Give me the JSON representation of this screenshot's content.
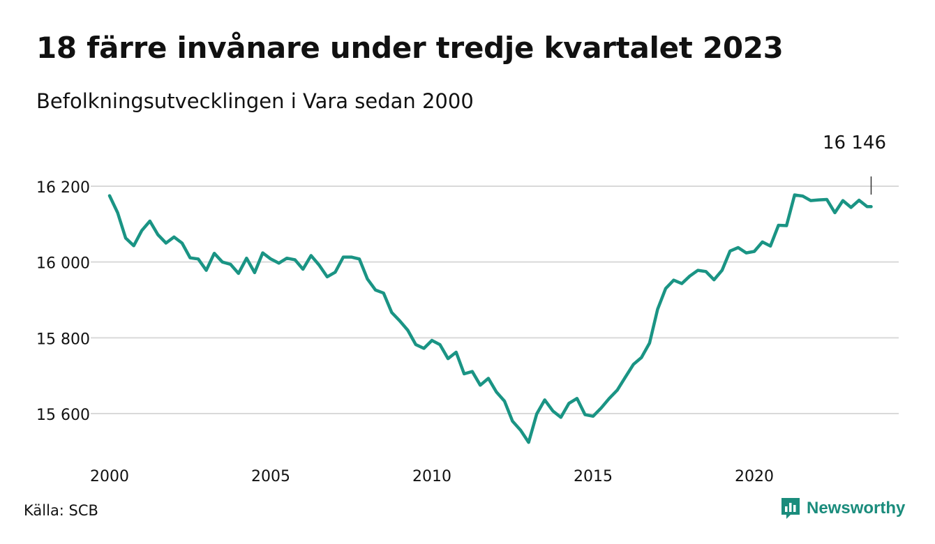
{
  "title": "18 färre invånare under tredje kvartalet 2023",
  "subtitle": "Befolkningsutvecklingen i Vara sedan 2000",
  "source": "Källa: SCB",
  "brand": {
    "name": "Newsworthy",
    "icon": "newsworthy-logo-icon",
    "color": "#1a8c7c"
  },
  "colors": {
    "line": "#1a9484",
    "grid": "#d9d9d9",
    "text": "#111111"
  },
  "chart_data": {
    "type": "line",
    "title": "18 färre invånare under tredje kvartalet 2023",
    "subtitle": "Befolkningsutvecklingen i Vara sedan 2000",
    "xlabel": "",
    "ylabel": "",
    "xlim": [
      2000,
      2024
    ],
    "ylim": [
      15500,
      16250
    ],
    "x_ticks": [
      2000,
      2005,
      2010,
      2015,
      2020
    ],
    "x_tick_labels": [
      "2000",
      "2005",
      "2010",
      "2015",
      "2020"
    ],
    "y_ticks": [
      15600,
      15800,
      16000,
      16200
    ],
    "y_tick_labels": [
      "15 600",
      "15 800",
      "16 000",
      "16 200"
    ],
    "grid": "horizontal",
    "legend": "none",
    "annotation": {
      "label": "16 146",
      "x": 2023.625
    },
    "series": [
      {
        "x": [
          2000.0,
          2000.25,
          2000.5,
          2000.75,
          2001.0,
          2001.25,
          2001.5,
          2001.75,
          2002.0,
          2002.25,
          2002.5,
          2002.75,
          2003.0,
          2003.25,
          2003.5,
          2003.75,
          2004.0,
          2004.25,
          2004.5,
          2004.75,
          2005.0,
          2005.25,
          2005.5,
          2005.75,
          2006.0,
          2006.25,
          2006.5,
          2006.75,
          2007.0,
          2007.25,
          2007.5,
          2007.75,
          2008.0,
          2008.25,
          2008.5,
          2008.75,
          2009.0,
          2009.25,
          2009.5,
          2009.75,
          2010.0,
          2010.25,
          2010.5,
          2010.75,
          2011.0,
          2011.25,
          2011.5,
          2011.75,
          2012.0,
          2012.25,
          2012.5,
          2012.75,
          2013.0,
          2013.25,
          2013.5,
          2013.75,
          2014.0,
          2014.25,
          2014.5,
          2014.75,
          2015.0,
          2015.25,
          2015.5,
          2015.75,
          2016.0,
          2016.25,
          2016.5,
          2016.75,
          2017.0,
          2017.25,
          2017.5,
          2017.75,
          2018.0,
          2018.25,
          2018.5,
          2018.75,
          2019.0,
          2019.25,
          2019.5,
          2019.75,
          2020.0,
          2020.25,
          2020.5,
          2020.75,
          2021.0,
          2021.25,
          2021.5,
          2021.75,
          2022.0,
          2022.25,
          2022.5,
          2022.75,
          2023.0,
          2023.25,
          2023.5,
          2023.625
        ],
        "values": [
          16175,
          16130,
          16063,
          16043,
          16083,
          16108,
          16072,
          16050,
          16066,
          16050,
          16011,
          16008,
          15978,
          16023,
          16000,
          15994,
          15970,
          16010,
          15972,
          16024,
          16008,
          15997,
          16010,
          16006,
          15981,
          16017,
          15992,
          15961,
          15973,
          16013,
          16013,
          16008,
          15955,
          15926,
          15918,
          15867,
          15845,
          15820,
          15782,
          15772,
          15793,
          15782,
          15745,
          15762,
          15705,
          15711,
          15675,
          15693,
          15657,
          15633,
          15580,
          15556,
          15524,
          15599,
          15636,
          15607,
          15590,
          15627,
          15640,
          15597,
          15593,
          15615,
          15640,
          15662,
          15696,
          15730,
          15748,
          15786,
          15875,
          15930,
          15952,
          15943,
          15963,
          15978,
          15975,
          15953,
          15978,
          16029,
          16038,
          16024,
          16028,
          16053,
          16042,
          16097,
          16096,
          16177,
          16174,
          16162,
          16164,
          16165,
          16130,
          16162,
          16144,
          16163,
          16146,
          16146
        ]
      }
    ]
  }
}
